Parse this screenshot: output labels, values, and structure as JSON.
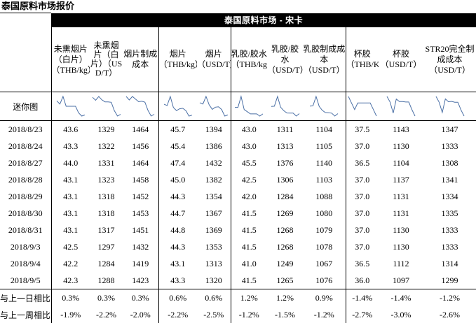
{
  "title": "泰国原料市场报价",
  "market_header": "泰国原料市场 - 宋卡",
  "headers": [
    "未熏烟片（白片）（THB/kg）",
    "未熏烟片（白片）（USD/T）",
    "烟片制成成本",
    "烟片（THB/kg）",
    "烟片（USD/T）",
    "乳胶/胶水（THB/kg）",
    "乳胶/胶水（USD/T）",
    "乳胶制成成本（USD/T）",
    "杯胶（THB/KG）",
    "杯胶（USD/T）",
    "STR20完全制成成本（USD/T）"
  ],
  "sparkline_label": "迷你图",
  "dates": [
    "2018/8/23",
    "2018/8/24",
    "2018/8/27",
    "2018/8/28",
    "2018/8/29",
    "2018/8/30",
    "2018/8/31",
    "2018/9/3",
    "2018/9/4",
    "2018/9/5"
  ],
  "rows": [
    [
      "43.6",
      "1329",
      "1464",
      "45.7",
      "1394",
      "43.0",
      "1311",
      "1104",
      "37.5",
      "1143",
      "1347"
    ],
    [
      "43.3",
      "1322",
      "1456",
      "45.4",
      "1386",
      "43.0",
      "1313",
      "1105",
      "37.0",
      "1130",
      "1333"
    ],
    [
      "44.0",
      "1331",
      "1464",
      "47.4",
      "1432",
      "45.5",
      "1376",
      "1140",
      "36.5",
      "1104",
      "1308"
    ],
    [
      "43.1",
      "1323",
      "1458",
      "45.0",
      "1382",
      "42.5",
      "1306",
      "1103",
      "37.0",
      "1137",
      "1341"
    ],
    [
      "43.1",
      "1318",
      "1452",
      "44.3",
      "1354",
      "42.0",
      "1284",
      "1088",
      "37.0",
      "1131",
      "1334"
    ],
    [
      "43.1",
      "1318",
      "1453",
      "44.7",
      "1367",
      "41.5",
      "1269",
      "1080",
      "37.0",
      "1131",
      "1335"
    ],
    [
      "43.1",
      "1317",
      "1451",
      "44.8",
      "1369",
      "41.5",
      "1268",
      "1079",
      "37.0",
      "1130",
      "1333"
    ],
    [
      "42.5",
      "1297",
      "1432",
      "44.3",
      "1353",
      "41.5",
      "1268",
      "1078",
      "37.0",
      "1130",
      "1333"
    ],
    [
      "42.2",
      "1284",
      "1419",
      "43.1",
      "1313",
      "41.0",
      "1249",
      "1067",
      "36.5",
      "1112",
      "1314"
    ],
    [
      "42.3",
      "1288",
      "1423",
      "43.3",
      "1320",
      "41.5",
      "1265",
      "1076",
      "36.0",
      "1097",
      "1299"
    ]
  ],
  "compare": [
    {
      "label": "与上一日相比",
      "values": [
        "0.3%",
        "0.3%",
        "0.3%",
        "0.6%",
        "0.6%",
        "1.2%",
        "1.2%",
        "0.9%",
        "-1.4%",
        "-1.4%",
        "-1.2%"
      ]
    },
    {
      "label": "与上一周相比",
      "values": [
        "-1.9%",
        "-2.2%",
        "-2.0%",
        "-2.2%",
        "-2.5%",
        "-1.2%",
        "-1.5%",
        "-1.2%",
        "-2.7%",
        "-3.0%",
        "-2.6%"
      ]
    }
  ]
}
